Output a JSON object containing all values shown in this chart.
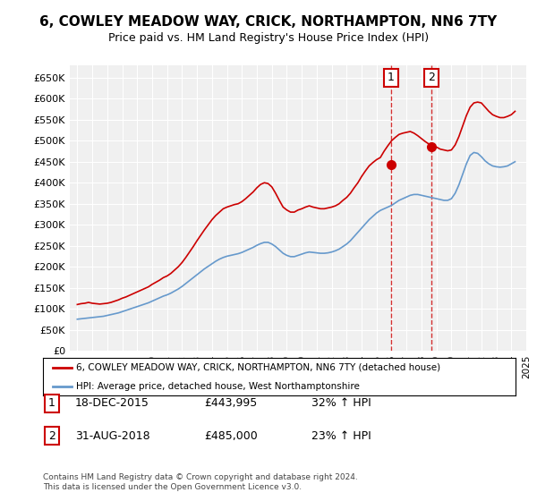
{
  "title": "6, COWLEY MEADOW WAY, CRICK, NORTHAMPTON, NN6 7TY",
  "subtitle": "Price paid vs. HM Land Registry's House Price Index (HPI)",
  "ylabel_ticks": [
    "£0",
    "£50K",
    "£100K",
    "£150K",
    "£200K",
    "£250K",
    "£300K",
    "£350K",
    "£400K",
    "£450K",
    "£500K",
    "£550K",
    "£600K",
    "£650K"
  ],
  "ytick_values": [
    0,
    50000,
    100000,
    150000,
    200000,
    250000,
    300000,
    350000,
    400000,
    450000,
    500000,
    550000,
    600000,
    650000
  ],
  "legend_line1": "6, COWLEY MEADOW WAY, CRICK, NORTHAMPTON, NN6 7TY (detached house)",
  "legend_line2": "HPI: Average price, detached house, West Northamptonshire",
  "transaction1_label": "1",
  "transaction1_date": "18-DEC-2015",
  "transaction1_price": "£443,995",
  "transaction1_hpi": "32% ↑ HPI",
  "transaction2_label": "2",
  "transaction2_date": "31-AUG-2018",
  "transaction2_price": "£485,000",
  "transaction2_hpi": "23% ↑ HPI",
  "footer": "Contains HM Land Registry data © Crown copyright and database right 2024.\nThis data is licensed under the Open Government Licence v3.0.",
  "red_color": "#cc0000",
  "blue_color": "#6699cc",
  "background_color": "#ffffff",
  "plot_bg_color": "#f0f0f0",
  "transaction1_x": 2015.96,
  "transaction2_x": 2018.67,
  "red_years": [
    1995,
    1995.25,
    1995.5,
    1995.75,
    1996,
    1996.25,
    1996.5,
    1996.75,
    1997,
    1997.25,
    1997.5,
    1997.75,
    1998,
    1998.25,
    1998.5,
    1998.75,
    1999,
    1999.25,
    1999.5,
    1999.75,
    2000,
    2000.25,
    2000.5,
    2000.75,
    2001,
    2001.25,
    2001.5,
    2001.75,
    2002,
    2002.25,
    2002.5,
    2002.75,
    2003,
    2003.25,
    2003.5,
    2003.75,
    2004,
    2004.25,
    2004.5,
    2004.75,
    2005,
    2005.25,
    2005.5,
    2005.75,
    2006,
    2006.25,
    2006.5,
    2006.75,
    2007,
    2007.25,
    2007.5,
    2007.75,
    2008,
    2008.25,
    2008.5,
    2008.75,
    2009,
    2009.25,
    2009.5,
    2009.75,
    2010,
    2010.25,
    2010.5,
    2010.75,
    2011,
    2011.25,
    2011.5,
    2011.75,
    2012,
    2012.25,
    2012.5,
    2012.75,
    2013,
    2013.25,
    2013.5,
    2013.75,
    2014,
    2014.25,
    2014.5,
    2014.75,
    2015,
    2015.25,
    2015.5,
    2015.75,
    2016,
    2016.25,
    2016.5,
    2016.75,
    2017,
    2017.25,
    2017.5,
    2017.75,
    2018,
    2018.25,
    2018.5,
    2018.75,
    2019,
    2019.25,
    2019.5,
    2019.75,
    2020,
    2020.25,
    2020.5,
    2020.75,
    2021,
    2021.25,
    2021.5,
    2021.75,
    2022,
    2022.25,
    2022.5,
    2022.75,
    2023,
    2023.25,
    2023.5,
    2023.75,
    2024,
    2024.25
  ],
  "red_values": [
    110000,
    112000,
    113000,
    115000,
    113000,
    112000,
    111000,
    112000,
    113000,
    115000,
    118000,
    121000,
    125000,
    128000,
    132000,
    136000,
    140000,
    144000,
    148000,
    152000,
    158000,
    163000,
    168000,
    174000,
    178000,
    184000,
    192000,
    200000,
    210000,
    222000,
    235000,
    248000,
    262000,
    275000,
    288000,
    300000,
    312000,
    322000,
    330000,
    338000,
    342000,
    345000,
    348000,
    350000,
    355000,
    362000,
    370000,
    378000,
    388000,
    396000,
    400000,
    398000,
    390000,
    375000,
    358000,
    342000,
    335000,
    330000,
    330000,
    335000,
    338000,
    342000,
    345000,
    342000,
    340000,
    338000,
    338000,
    340000,
    342000,
    345000,
    350000,
    358000,
    365000,
    375000,
    388000,
    400000,
    415000,
    428000,
    440000,
    448000,
    455000,
    460000,
    475000,
    488000,
    500000,
    508000,
    515000,
    518000,
    520000,
    522000,
    518000,
    512000,
    505000,
    498000,
    492000,
    488000,
    485000,
    480000,
    478000,
    476000,
    478000,
    490000,
    510000,
    535000,
    560000,
    580000,
    590000,
    592000,
    590000,
    580000,
    570000,
    562000,
    558000,
    555000,
    555000,
    558000,
    562000,
    570000
  ],
  "blue_years": [
    1995,
    1995.25,
    1995.5,
    1995.75,
    1996,
    1996.25,
    1996.5,
    1996.75,
    1997,
    1997.25,
    1997.5,
    1997.75,
    1998,
    1998.25,
    1998.5,
    1998.75,
    1999,
    1999.25,
    1999.5,
    1999.75,
    2000,
    2000.25,
    2000.5,
    2000.75,
    2001,
    2001.25,
    2001.5,
    2001.75,
    2002,
    2002.25,
    2002.5,
    2002.75,
    2003,
    2003.25,
    2003.5,
    2003.75,
    2004,
    2004.25,
    2004.5,
    2004.75,
    2005,
    2005.25,
    2005.5,
    2005.75,
    2006,
    2006.25,
    2006.5,
    2006.75,
    2007,
    2007.25,
    2007.5,
    2007.75,
    2008,
    2008.25,
    2008.5,
    2008.75,
    2009,
    2009.25,
    2009.5,
    2009.75,
    2010,
    2010.25,
    2010.5,
    2010.75,
    2011,
    2011.25,
    2011.5,
    2011.75,
    2012,
    2012.25,
    2012.5,
    2012.75,
    2013,
    2013.25,
    2013.5,
    2013.75,
    2014,
    2014.25,
    2014.5,
    2014.75,
    2015,
    2015.25,
    2015.5,
    2015.75,
    2016,
    2016.25,
    2016.5,
    2016.75,
    2017,
    2017.25,
    2017.5,
    2017.75,
    2018,
    2018.25,
    2018.5,
    2018.75,
    2019,
    2019.25,
    2019.5,
    2019.75,
    2020,
    2020.25,
    2020.5,
    2020.75,
    2021,
    2021.25,
    2021.5,
    2021.75,
    2022,
    2022.25,
    2022.5,
    2022.75,
    2023,
    2023.25,
    2023.5,
    2023.75,
    2024,
    2024.25
  ],
  "blue_values": [
    75000,
    76000,
    77000,
    78000,
    79000,
    80000,
    81000,
    82000,
    84000,
    86000,
    88000,
    90000,
    93000,
    96000,
    99000,
    102000,
    105000,
    108000,
    111000,
    114000,
    118000,
    122000,
    126000,
    130000,
    133000,
    137000,
    142000,
    147000,
    153000,
    160000,
    167000,
    174000,
    181000,
    188000,
    195000,
    201000,
    207000,
    213000,
    218000,
    222000,
    225000,
    227000,
    229000,
    231000,
    234000,
    238000,
    242000,
    246000,
    251000,
    255000,
    258000,
    258000,
    254000,
    248000,
    240000,
    232000,
    227000,
    224000,
    224000,
    227000,
    230000,
    233000,
    235000,
    234000,
    233000,
    232000,
    232000,
    233000,
    235000,
    238000,
    242000,
    248000,
    254000,
    262000,
    272000,
    282000,
    292000,
    302000,
    312000,
    320000,
    328000,
    334000,
    338000,
    342000,
    346000,
    352000,
    358000,
    362000,
    366000,
    370000,
    372000,
    372000,
    370000,
    368000,
    366000,
    364000,
    362000,
    360000,
    358000,
    358000,
    362000,
    375000,
    395000,
    420000,
    445000,
    465000,
    472000,
    470000,
    462000,
    452000,
    445000,
    440000,
    438000,
    437000,
    438000,
    440000,
    445000,
    450000
  ]
}
